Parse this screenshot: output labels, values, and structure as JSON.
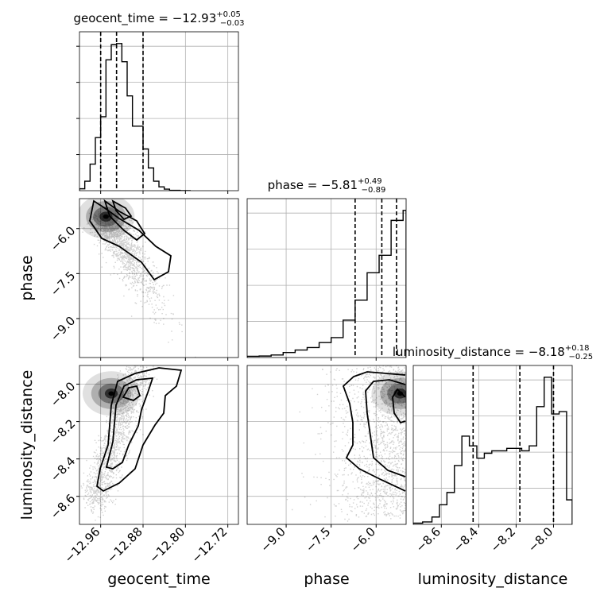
{
  "chart_data": {
    "type": "corner",
    "parameters": [
      "geocent_time",
      "phase",
      "luminosity_distance"
    ],
    "axis_labels": [
      "geocent_time",
      "phase",
      "luminosity_distance"
    ],
    "titles": [
      {
        "parameter": "geocent_time",
        "prefix": "geocent_time = ",
        "median": "−12.93",
        "plus": "+0.05",
        "minus": "−0.03"
      },
      {
        "parameter": "phase",
        "prefix": "phase = ",
        "median": "−5.81",
        "plus": "+0.49",
        "minus": "−0.89"
      },
      {
        "parameter": "luminosity_distance",
        "prefix": "luminosity_distance = ",
        "median": "−8.18",
        "plus": "+0.18",
        "minus": "−0.25"
      }
    ],
    "ranges": {
      "geocent_time": [
        -13.0,
        -12.7
      ],
      "phase": [
        -10.3,
        -5.0
      ],
      "luminosity_distance": [
        -8.75,
        -7.9
      ]
    },
    "ticks": {
      "geocent_time": {
        "values": [
          -12.96,
          -12.88,
          -12.8,
          -12.72
        ],
        "labels": [
          "−12.96",
          "−12.88",
          "−12.80",
          "−12.72"
        ]
      },
      "phase": {
        "values": [
          -9.0,
          -7.5,
          -6.0
        ],
        "labels": [
          "−9.0",
          "−7.5",
          "−6.0"
        ]
      },
      "luminosity_distance": {
        "values": [
          -8.6,
          -8.4,
          -8.2,
          -8.0
        ],
        "labels": [
          "−8.6",
          "−8.4",
          "−8.2",
          "−8.0"
        ]
      }
    },
    "quantiles": {
      "geocent_time": [
        -12.96,
        -12.93,
        -12.88
      ],
      "phase": [
        -6.7,
        -5.81,
        -5.32
      ],
      "luminosity_distance": [
        -8.43,
        -8.18,
        -8.0
      ]
    },
    "histograms": {
      "geocent_time": {
        "edges": [
          -13.0,
          -12.99,
          -12.98,
          -12.97,
          -12.96,
          -12.95,
          -12.94,
          -12.93,
          -12.92,
          -12.91,
          -12.9,
          -12.89,
          -12.88,
          -12.87,
          -12.86,
          -12.85,
          -12.84,
          -12.83,
          -12.82,
          -12.81,
          -12.8,
          -12.79
        ],
        "counts": [
          0.5,
          2.5,
          7,
          14,
          19.5,
          34.5,
          38.5,
          38.8,
          34,
          25,
          17,
          17,
          11,
          6,
          2.5,
          1,
          0.4,
          0.1,
          0.1,
          0,
          0
        ]
      },
      "phase": {
        "edges": [
          -10.3,
          -9.9,
          -9.5,
          -9.1,
          -8.7,
          -8.3,
          -7.9,
          -7.5,
          -7.1,
          -6.7,
          -6.3,
          -5.9,
          -5.5,
          -5.1,
          -5.0
        ],
        "counts": [
          0.5,
          0.6,
          1,
          2,
          3,
          4,
          6,
          8,
          15,
          23,
          34,
          41,
          55,
          59
        ]
      },
      "luminosity_distance": {
        "edges": [
          -8.75,
          -8.7,
          -8.65,
          -8.61,
          -8.57,
          -8.53,
          -8.49,
          -8.45,
          -8.41,
          -8.37,
          -8.33,
          -8.29,
          -8.25,
          -8.21,
          -8.17,
          -8.13,
          -8.09,
          -8.05,
          -8.01,
          -7.97,
          -7.93,
          -7.9
        ],
        "counts": [
          0.5,
          1,
          3,
          8,
          13,
          24,
          36,
          32,
          27,
          29,
          30,
          30,
          31,
          31,
          30,
          32,
          48,
          60,
          45,
          46,
          10
        ]
      }
    },
    "contour_levels": [
      0.39,
      0.86,
      0.99
    ],
    "joint_density": [
      {
        "x": "geocent_time",
        "y": "phase",
        "mode": [
          -12.95,
          -5.6
        ],
        "description": "mass concentrated near geocent_time -12.95 and phase -5.6, extending toward -12.87 / -7.7"
      },
      {
        "x": "geocent_time",
        "y": "luminosity_distance",
        "mode": [
          -12.94,
          -8.05
        ],
        "description": "elongated positive correlation from (-12.97, -8.55) to (-12.88, -7.95)"
      },
      {
        "x": "phase",
        "y": "luminosity_distance",
        "mode": [
          -5.2,
          -8.05
        ],
        "description": "mass concentrated at phase near -5.2 spanning luminosity_distance -8.7 to -7.9"
      }
    ],
    "grid": true,
    "legend": "none"
  }
}
